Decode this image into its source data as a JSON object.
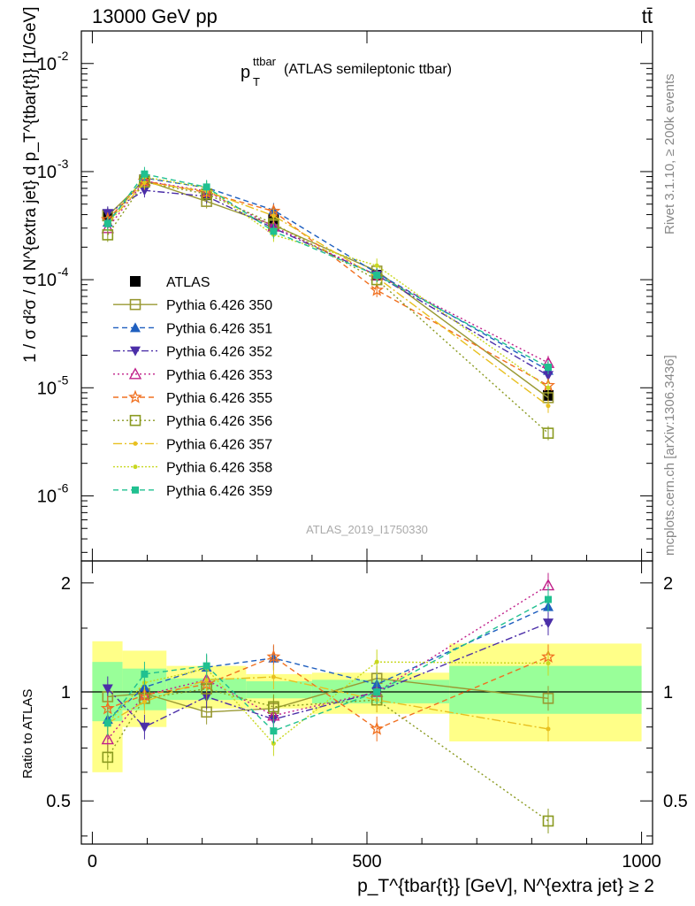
{
  "header": {
    "energy_label": "13000 GeV pp",
    "process_label": "tt̄"
  },
  "plot_title": {
    "p": "p",
    "sup": "ttbar",
    "sub": "T",
    "rest": " (ATLAS semileptonic ttbar)"
  },
  "watermark": "ATLAS_2019_I1750330",
  "side_labels": {
    "rivet": "Rivet 3.1.10, ≥ 200k events",
    "mcplots": "mcplots.cern.ch [arXiv:1306.3436]"
  },
  "main_ylabel": "1 / σ d²σ / d N^{extra jet} d p_T^{tbar{t}} [1/GeV]",
  "ratio_ylabel": "Ratio to ATLAS",
  "xlabel": "p_T^{tbar{t}} [GeV], N^{extra jet} ≥ 2",
  "colors": {
    "350": "#999933",
    "351": "#1f5fbf",
    "352": "#4b2ea8",
    "353": "#c0208a",
    "355": "#f07020",
    "356": "#8a9a20",
    "357": "#e8c020",
    "358": "#c8d820",
    "359": "#20c090",
    "band_green": "#99ff99",
    "band_yellow": "#ffff88"
  },
  "chart_data": [
    {
      "type": "line",
      "panel": "main",
      "yscale": "log",
      "xlim": [
        -20,
        1020
      ],
      "ylim": [
        2.5e-07,
        0.02
      ],
      "x_ticks": [
        0,
        500,
        1000
      ],
      "y_ticks": [
        {
          "v": 1e-06,
          "exp": "-6"
        },
        {
          "v": 1e-05,
          "exp": "-5"
        },
        {
          "v": 0.0001,
          "exp": "-4"
        },
        {
          "v": 0.001,
          "exp": "-3"
        },
        {
          "v": 0.01,
          "exp": "-2"
        }
      ],
      "bin_centers": [
        28,
        95,
        208,
        330,
        518,
        830
      ],
      "series": [
        {
          "name": "ATLAS",
          "key": "atlas",
          "values": [
            0.0004,
            0.00084,
            0.00061,
            0.00036,
            0.00011,
            8.5e-06
          ]
        },
        {
          "name": "Pythia 6.426 350",
          "key": "350",
          "values": [
            0.00039,
            0.00083,
            0.00053,
            0.00032,
            0.00012,
            8.1e-06
          ]
        },
        {
          "name": "Pythia 6.426 351",
          "key": "351",
          "values": [
            0.00034,
            0.00087,
            0.00071,
            0.00044,
            0.000115,
            1.45e-05
          ]
        },
        {
          "name": "Pythia 6.426 352",
          "key": "352",
          "values": [
            0.00041,
            0.00067,
            0.00059,
            0.0003,
            0.00011,
            1.3e-05
          ]
        },
        {
          "name": "Pythia 6.426 353",
          "key": "353",
          "values": [
            0.0003,
            0.00082,
            0.00066,
            0.00031,
            0.00011,
            1.7e-05
          ]
        },
        {
          "name": "Pythia 6.426 355",
          "key": "355",
          "values": [
            0.00036,
            0.00082,
            0.00064,
            0.00043,
            8e-05,
            1.05e-05
          ]
        },
        {
          "name": "Pythia 6.426 356",
          "key": "356",
          "values": [
            0.00026,
            0.0008,
            0.00062,
            0.00033,
            0.0001,
            3.8e-06
          ]
        },
        {
          "name": "Pythia 6.426 357",
          "key": "357",
          "values": [
            0.00033,
            0.00079,
            0.00066,
            0.00039,
            0.000105,
            6.8e-06
          ]
        },
        {
          "name": "Pythia 6.426 358",
          "key": "358",
          "values": [
            0.00033,
            0.00089,
            0.00071,
            0.00026,
            0.000135,
            1e-05
          ]
        },
        {
          "name": "Pythia 6.426 359",
          "key": "359",
          "values": [
            0.00033,
            0.00095,
            0.00072,
            0.00028,
            0.00011,
            1.55e-05
          ]
        }
      ]
    },
    {
      "type": "line",
      "panel": "ratio",
      "ylabel": "Ratio to ATLAS",
      "xlim": [
        -20,
        1020
      ],
      "ylim": [
        0.38,
        2.3
      ],
      "x_ticks": [
        0,
        500,
        1000
      ],
      "y_ticks": [
        0.5,
        1,
        2
      ],
      "bins": [
        [
          0,
          55
        ],
        [
          55,
          135
        ],
        [
          135,
          280
        ],
        [
          280,
          400
        ],
        [
          400,
          650
        ],
        [
          650,
          1000
        ]
      ],
      "band_green": [
        [
          0.83,
          1.21
        ],
        [
          0.89,
          1.16
        ],
        [
          0.95,
          1.09
        ],
        [
          0.96,
          1.07
        ],
        [
          0.93,
          1.08
        ],
        [
          0.87,
          1.18
        ]
      ],
      "band_yellow": [
        [
          0.6,
          1.38
        ],
        [
          0.8,
          1.3
        ],
        [
          0.9,
          1.18
        ],
        [
          0.9,
          1.12
        ],
        [
          0.87,
          1.13
        ],
        [
          0.73,
          1.36
        ]
      ],
      "bin_centers": [
        28,
        95,
        208,
        330,
        518,
        830
      ],
      "series": [
        {
          "name": "Pythia 6.426 350",
          "key": "350",
          "values": [
            0.97,
            0.99,
            0.88,
            0.9,
            1.09,
            0.96
          ]
        },
        {
          "name": "Pythia 6.426 351",
          "key": "351",
          "values": [
            0.84,
            1.03,
            1.17,
            1.24,
            1.05,
            1.72
          ]
        },
        {
          "name": "Pythia 6.426 352",
          "key": "352",
          "values": [
            1.02,
            0.8,
            0.97,
            0.84,
            1.0,
            1.55
          ]
        },
        {
          "name": "Pythia 6.426 353",
          "key": "353",
          "values": [
            0.74,
            0.98,
            1.08,
            0.86,
            1.0,
            1.97
          ]
        },
        {
          "name": "Pythia 6.426 355",
          "key": "355",
          "values": [
            0.9,
            0.98,
            1.05,
            1.25,
            0.79,
            1.25
          ]
        },
        {
          "name": "Pythia 6.426 356",
          "key": "356",
          "values": [
            0.66,
            0.96,
            1.02,
            0.91,
            0.95,
            0.44
          ]
        },
        {
          "name": "Pythia 6.426 357",
          "key": "357",
          "values": [
            0.82,
            0.94,
            1.08,
            1.1,
            0.95,
            0.79
          ]
        },
        {
          "name": "Pythia 6.426 358",
          "key": "358",
          "values": [
            0.82,
            1.06,
            1.16,
            0.72,
            1.21,
            1.2
          ]
        },
        {
          "name": "Pythia 6.426 359",
          "key": "359",
          "values": [
            0.82,
            1.12,
            1.18,
            0.78,
            1.0,
            1.8
          ]
        }
      ]
    }
  ]
}
